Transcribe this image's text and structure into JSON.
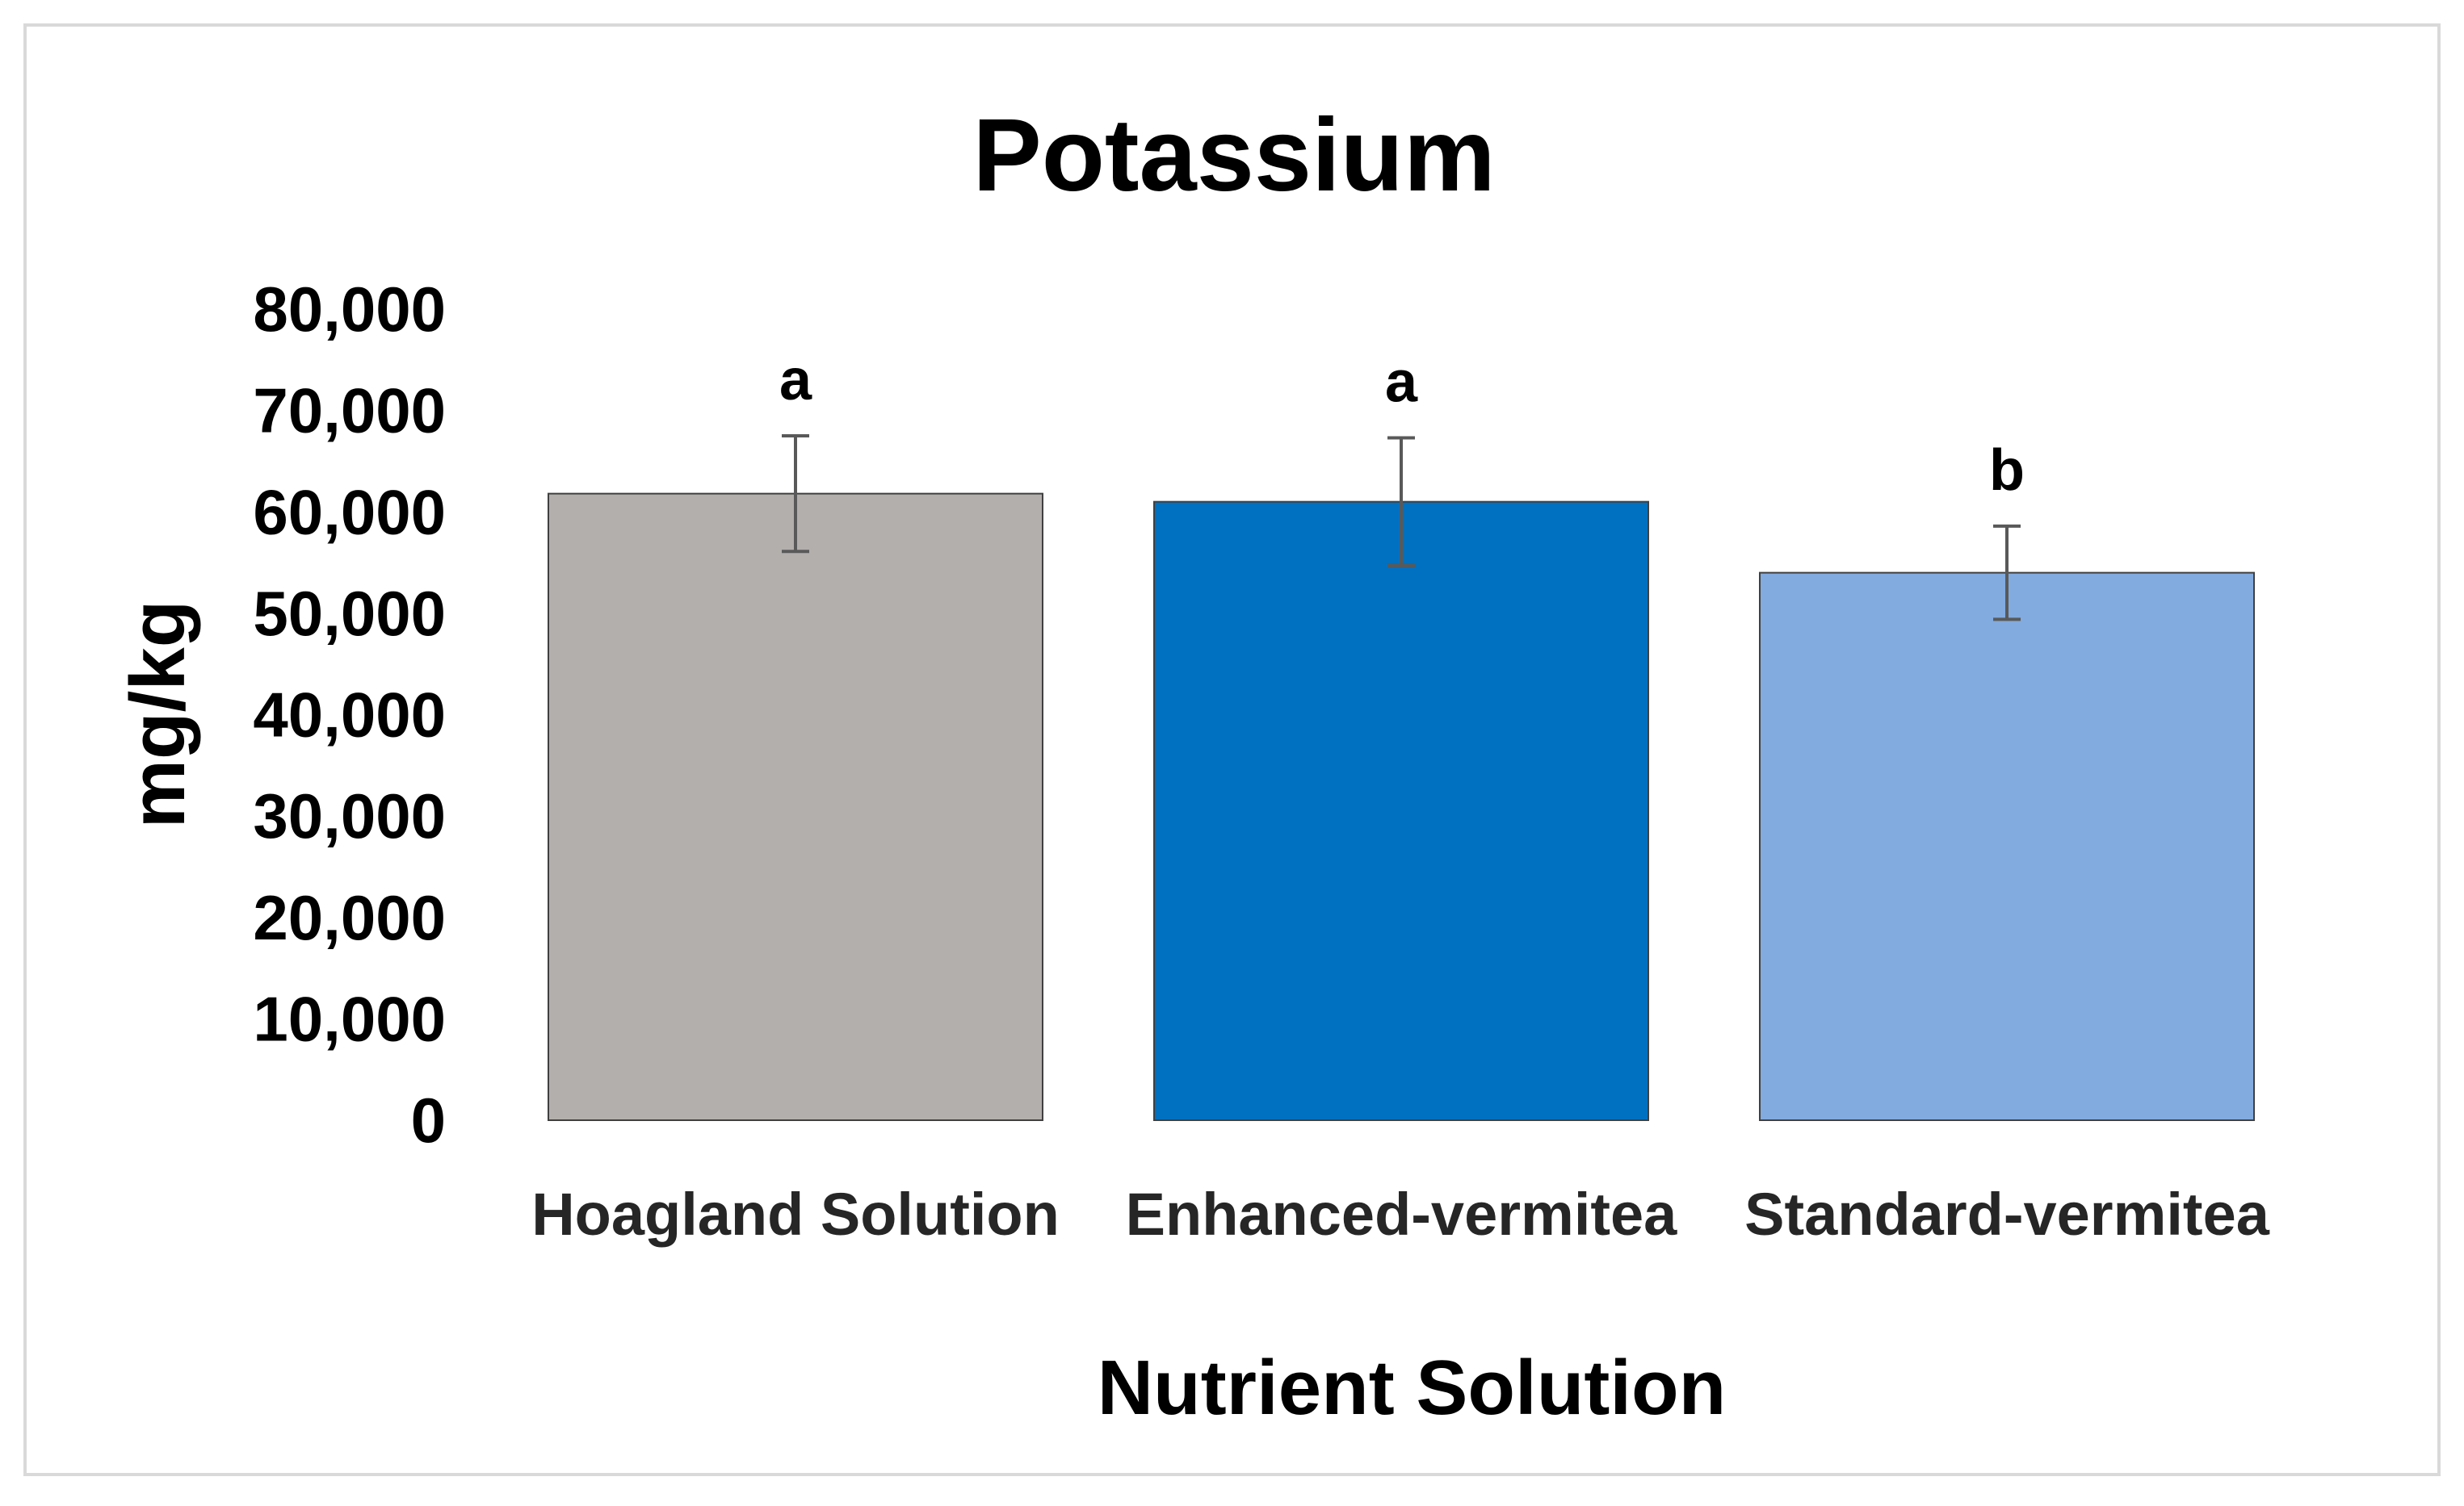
{
  "chart_data": {
    "type": "bar",
    "title": "Potassium",
    "xlabel": "Nutrient Solution",
    "ylabel": "mg/kg",
    "categories": [
      "Hoagland Solution",
      "Enhanced-vermitea",
      "Standard-vermitea"
    ],
    "values": [
      61800,
      61000,
      54000
    ],
    "error_bars": [
      5700,
      6300,
      4600
    ],
    "significance_labels": [
      "a",
      "a",
      "b"
    ],
    "colors": [
      "#b3afac",
      "#0070c0",
      "#82abdf"
    ],
    "ylim": [
      0,
      80000
    ],
    "yticks": [
      0,
      10000,
      20000,
      30000,
      40000,
      50000,
      60000,
      70000,
      80000
    ],
    "ytick_labels": [
      "0",
      "10,000",
      "20,000",
      "30,000",
      "40,000",
      "50,000",
      "60,000",
      "70,000",
      "80,000"
    ],
    "grid": false,
    "legend": "none"
  }
}
